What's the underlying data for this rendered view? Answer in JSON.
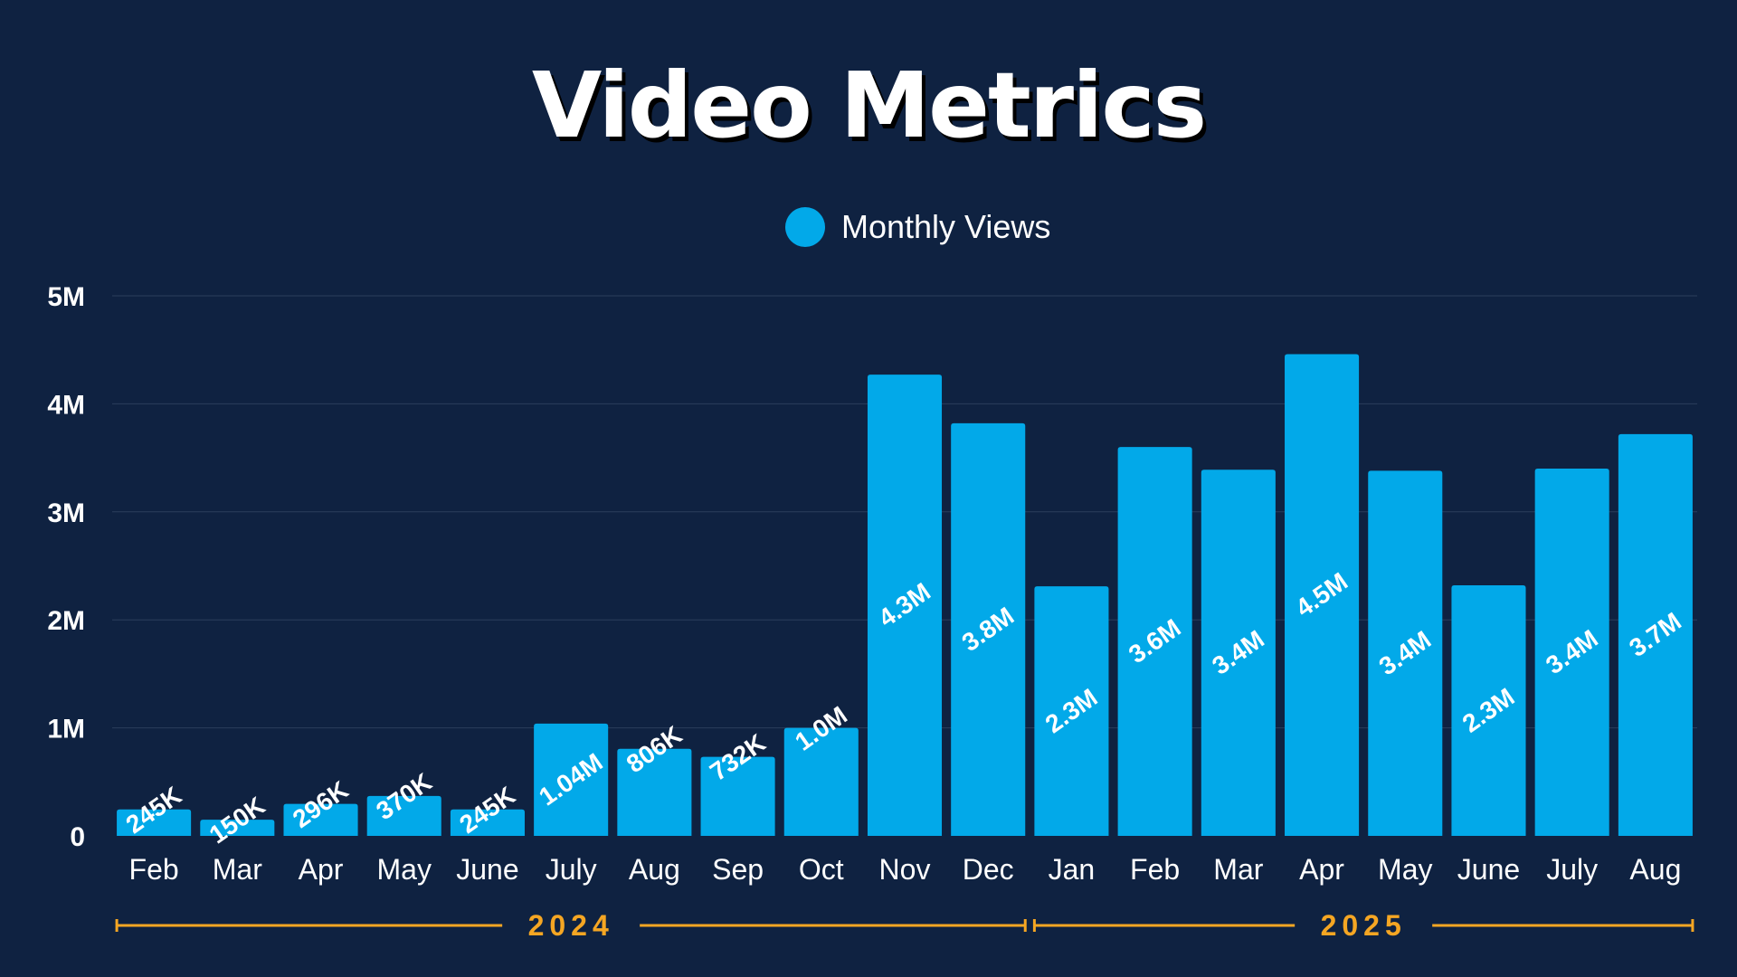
{
  "title": "Video Metrics",
  "colors": {
    "background": "#0f2241",
    "bar": "#02a9e9",
    "grid": "#2b3e5c",
    "year_accent": "#f5a623",
    "text": "#ffffff"
  },
  "chart_data": {
    "type": "bar",
    "legend": {
      "placement": "top-center",
      "entries": [
        "Monthly Views"
      ]
    },
    "categories": [
      "Feb",
      "Mar",
      "Apr",
      "May",
      "June",
      "July",
      "Aug",
      "Sep",
      "Oct",
      "Nov",
      "Dec",
      "Jan",
      "Feb",
      "Mar",
      "Apr",
      "May",
      "June",
      "July",
      "Aug"
    ],
    "series": [
      {
        "name": "Monthly Views",
        "values": [
          245000,
          150000,
          296000,
          370000,
          245000,
          1040000,
          806000,
          732000,
          1000000,
          4270000,
          3820000,
          2310000,
          3600000,
          3390000,
          4460000,
          3380000,
          2320000,
          3400000,
          3720000
        ],
        "labels": [
          "245K",
          "150K",
          "296K",
          "370K",
          "245K",
          "1.04M",
          "806K",
          "732K",
          "1.0M",
          "4.3M",
          "3.8M",
          "2.3M",
          "3.6M",
          "3.4M",
          "4.5M",
          "3.4M",
          "2.3M",
          "3.4M",
          "3.7M"
        ]
      }
    ],
    "ylim": [
      0,
      5000000
    ],
    "yticks": [
      0,
      1000000,
      2000000,
      3000000,
      4000000,
      5000000
    ],
    "ytick_labels": [
      "0",
      "1M",
      "2M",
      "3M",
      "4M",
      "5M"
    ],
    "grid": true,
    "year_groups": [
      {
        "label": "2024",
        "first_index": 0,
        "last_index": 10
      },
      {
        "label": "2025",
        "first_index": 11,
        "last_index": 18
      }
    ]
  }
}
